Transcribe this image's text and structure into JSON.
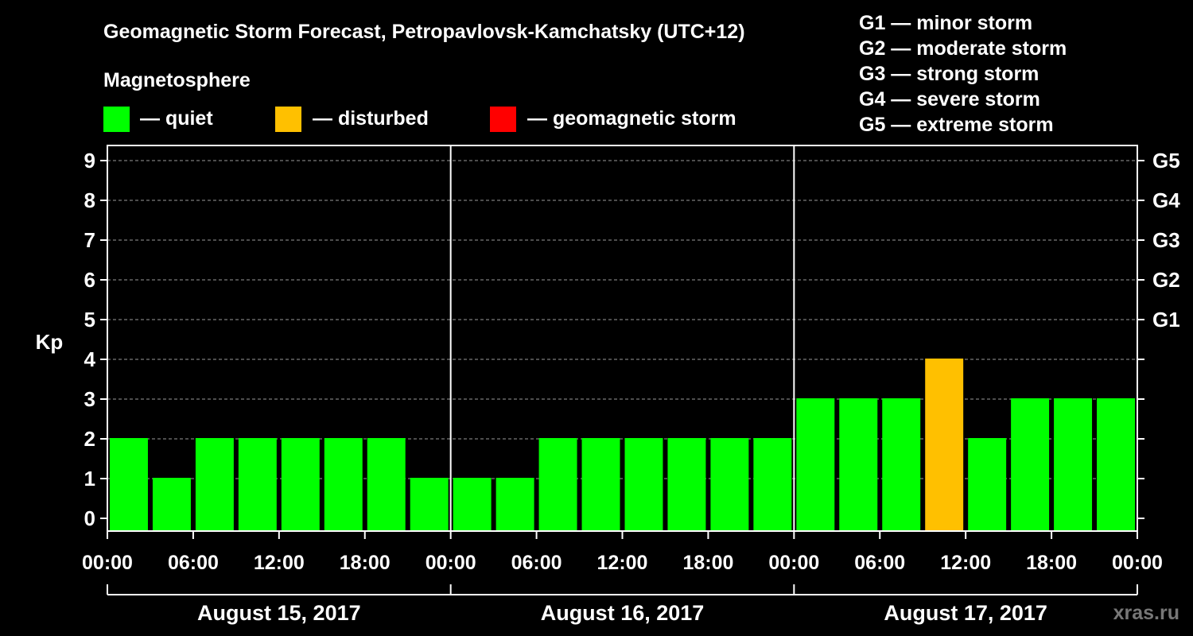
{
  "header": {
    "title": "Geomagnetic Storm Forecast, Petropavlovsk-Kamchatsky (UTC+12)",
    "magnetosphere_label": "Magnetosphere",
    "legend": [
      {
        "label": "— quiet",
        "color": "#00ff00"
      },
      {
        "label": "— disturbed",
        "color": "#ffc000"
      },
      {
        "label": "— geomagnetic storm",
        "color": "#ff0000"
      }
    ],
    "storm_scale": [
      "G1 — minor storm",
      "G2 — moderate storm",
      "G3 — strong storm",
      "G4 — severe storm",
      "G5 — extreme storm"
    ]
  },
  "watermark": "xras.ru",
  "chart_data": {
    "type": "bar",
    "title": "Geomagnetic Storm Forecast, Petropavlovsk-Kamchatsky (UTC+12)",
    "ylabel": "Kp",
    "ylim": [
      0,
      9
    ],
    "yticks": [
      "0",
      "1",
      "2",
      "3",
      "4",
      "5",
      "6",
      "7",
      "8",
      "9"
    ],
    "right_axis_labels": [
      {
        "kp": 5,
        "label": "G1"
      },
      {
        "kp": 6,
        "label": "G2"
      },
      {
        "kp": 7,
        "label": "G3"
      },
      {
        "kp": 8,
        "label": "G4"
      },
      {
        "kp": 9,
        "label": "G5"
      }
    ],
    "grid": true,
    "time_ticks": [
      "00:00",
      "06:00",
      "12:00",
      "18:00",
      "00:00",
      "06:00",
      "12:00",
      "18:00",
      "00:00",
      "06:00",
      "12:00",
      "18:00",
      "00:00"
    ],
    "days": [
      "August 15, 2017",
      "August 16, 2017",
      "August 17, 2017"
    ],
    "bars_per_day": 8,
    "values": [
      2,
      1,
      2,
      2,
      2,
      2,
      2,
      1,
      1,
      1,
      2,
      2,
      2,
      2,
      2,
      2,
      3,
      3,
      3,
      4,
      2,
      3,
      3,
      3
    ],
    "colors": {
      "quiet": "#00ff00",
      "disturbed": "#ffc000",
      "storm": "#ff0000"
    }
  }
}
